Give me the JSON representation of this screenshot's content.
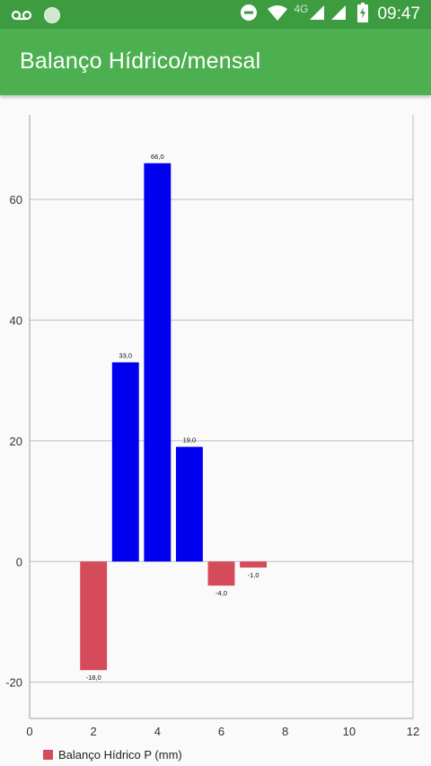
{
  "status_bar": {
    "time": "09:47",
    "network_label": "4G",
    "icons": [
      "voicemail-icon",
      "circle-icon",
      "do-not-disturb-icon",
      "wifi-icon",
      "signal-icon",
      "signal-icon",
      "battery-charging-icon"
    ]
  },
  "app_bar": {
    "title": "Balanço Hídrico/mensal",
    "color": "#4caf50"
  },
  "chart_data": {
    "type": "bar",
    "title": "",
    "xlabel": "",
    "ylabel": "",
    "xlim": [
      0,
      12
    ],
    "ylim": [
      -26,
      74
    ],
    "xticks": [
      0,
      2,
      4,
      6,
      8,
      10,
      12
    ],
    "yticks": [
      -20,
      0,
      20,
      40,
      60
    ],
    "grid": "horizontal",
    "legend": {
      "placement": "bottom-left",
      "entries": [
        {
          "label": "Balanço Hídrico P (mm)",
          "color": "#d64b5a"
        }
      ]
    },
    "positive_color": "#0000ee",
    "negative_color": "#d64b5a",
    "bars": [
      {
        "x": 2,
        "value": -18.0,
        "label": "-18,0"
      },
      {
        "x": 3,
        "value": 33.0,
        "label": "33,0"
      },
      {
        "x": 4,
        "value": 66.0,
        "label": "66,0"
      },
      {
        "x": 5,
        "value": 19.0,
        "label": "19,0"
      },
      {
        "x": 6,
        "value": -4.0,
        "label": "-4,0"
      },
      {
        "x": 7,
        "value": -1.0,
        "label": "-1,0"
      }
    ]
  }
}
